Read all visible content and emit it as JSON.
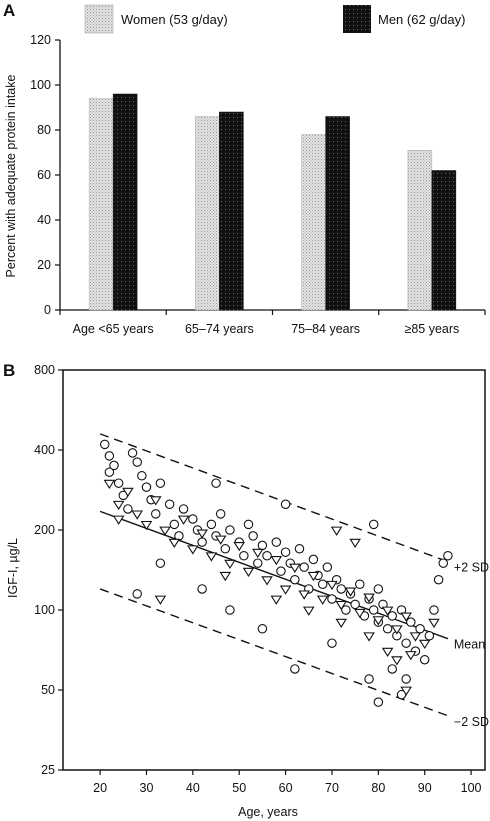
{
  "chart_data": [
    {
      "panel": "A",
      "type": "bar",
      "ylabel": "Percent with adequate protein intake",
      "xlabel": "",
      "ylim": [
        0,
        120
      ],
      "yticks": [
        0,
        20,
        40,
        60,
        80,
        100,
        120
      ],
      "grid": false,
      "legend_position": "top",
      "categories": [
        "Age <65 years",
        "65–74 years",
        "75–84 years",
        "≥85 years"
      ],
      "series": [
        {
          "name": "Women (53 g/day)",
          "color": "#d4d4d4",
          "values": [
            94,
            86,
            78,
            71
          ]
        },
        {
          "name": "Men (62 g/day)",
          "color": "#111111",
          "values": [
            96,
            88,
            86,
            62
          ]
        }
      ]
    },
    {
      "panel": "B",
      "type": "scatter",
      "xlabel": "Age, years",
      "ylabel": "IGF-I, µg/L",
      "xlim": [
        12,
        103
      ],
      "ylim": [
        25,
        800
      ],
      "yscale": "log",
      "xticks": [
        20,
        30,
        40,
        50,
        60,
        70,
        80,
        90,
        100
      ],
      "yticks": [
        25,
        50,
        100,
        200,
        400,
        800
      ],
      "grid": false,
      "reference_lines": [
        {
          "name": "+2 SD",
          "style": "dashed",
          "points": [
            [
              20,
              460
            ],
            [
              95,
              152
            ]
          ]
        },
        {
          "name": "Mean",
          "style": "solid",
          "points": [
            [
              20,
              235
            ],
            [
              95,
              78
            ]
          ]
        },
        {
          "name": "−2 SD",
          "style": "dashed",
          "points": [
            [
              20,
              120
            ],
            [
              95,
              40
            ]
          ]
        }
      ],
      "series": [
        {
          "name": "",
          "marker": "circle",
          "points": [
            [
              21,
              420
            ],
            [
              22,
              380
            ],
            [
              22,
              330
            ],
            [
              23,
              350
            ],
            [
              24,
              300
            ],
            [
              25,
              270
            ],
            [
              26,
              240
            ],
            [
              27,
              390
            ],
            [
              28,
              360
            ],
            [
              29,
              320
            ],
            [
              30,
              290
            ],
            [
              31,
              260
            ],
            [
              32,
              230
            ],
            [
              33,
              300
            ],
            [
              35,
              250
            ],
            [
              36,
              210
            ],
            [
              37,
              190
            ],
            [
              38,
              240
            ],
            [
              40,
              220
            ],
            [
              41,
              200
            ],
            [
              42,
              180
            ],
            [
              44,
              210
            ],
            [
              45,
              190
            ],
            [
              46,
              230
            ],
            [
              47,
              170
            ],
            [
              48,
              200
            ],
            [
              50,
              180
            ],
            [
              51,
              160
            ],
            [
              52,
              210
            ],
            [
              53,
              190
            ],
            [
              54,
              150
            ],
            [
              55,
              175
            ],
            [
              56,
              160
            ],
            [
              58,
              180
            ],
            [
              59,
              140
            ],
            [
              60,
              165
            ],
            [
              61,
              150
            ],
            [
              62,
              130
            ],
            [
              63,
              170
            ],
            [
              64,
              145
            ],
            [
              65,
              120
            ],
            [
              66,
              155
            ],
            [
              67,
              135
            ],
            [
              68,
              125
            ],
            [
              69,
              145
            ],
            [
              70,
              110
            ],
            [
              71,
              130
            ],
            [
              72,
              120
            ],
            [
              73,
              100
            ],
            [
              74,
              115
            ],
            [
              75,
              105
            ],
            [
              76,
              125
            ],
            [
              77,
              95
            ],
            [
              78,
              110
            ],
            [
              79,
              100
            ],
            [
              80,
              90
            ],
            [
              80,
              120
            ],
            [
              81,
              105
            ],
            [
              82,
              85
            ],
            [
              83,
              95
            ],
            [
              84,
              80
            ],
            [
              85,
              100
            ],
            [
              86,
              75
            ],
            [
              87,
              90
            ],
            [
              88,
              70
            ],
            [
              89,
              85
            ],
            [
              90,
              65
            ],
            [
              91,
              80
            ],
            [
              92,
              100
            ],
            [
              93,
              130
            ],
            [
              94,
              150
            ],
            [
              95,
              160
            ],
            [
              28,
              115
            ],
            [
              33,
              150
            ],
            [
              42,
              120
            ],
            [
              48,
              100
            ],
            [
              55,
              85
            ],
            [
              62,
              60
            ],
            [
              70,
              75
            ],
            [
              78,
              55
            ],
            [
              83,
              60
            ],
            [
              86,
              55
            ],
            [
              80,
              45
            ],
            [
              85,
              48
            ],
            [
              79,
              210
            ],
            [
              60,
              250
            ],
            [
              45,
              300
            ]
          ]
        },
        {
          "name": "",
          "marker": "triangle",
          "points": [
            [
              22,
              300
            ],
            [
              24,
              250
            ],
            [
              26,
              280
            ],
            [
              28,
              230
            ],
            [
              30,
              210
            ],
            [
              32,
              260
            ],
            [
              34,
              200
            ],
            [
              36,
              180
            ],
            [
              38,
              220
            ],
            [
              40,
              170
            ],
            [
              42,
              195
            ],
            [
              44,
              160
            ],
            [
              46,
              185
            ],
            [
              48,
              150
            ],
            [
              50,
              175
            ],
            [
              52,
              140
            ],
            [
              54,
              165
            ],
            [
              56,
              130
            ],
            [
              58,
              155
            ],
            [
              60,
              120
            ],
            [
              62,
              145
            ],
            [
              64,
              115
            ],
            [
              66,
              135
            ],
            [
              68,
              110
            ],
            [
              70,
              125
            ],
            [
              72,
              105
            ],
            [
              74,
              118
            ],
            [
              76,
              98
            ],
            [
              78,
              112
            ],
            [
              80,
              92
            ],
            [
              82,
              100
            ],
            [
              84,
              85
            ],
            [
              86,
              95
            ],
            [
              88,
              80
            ],
            [
              90,
              75
            ],
            [
              24,
              220
            ],
            [
              33,
              110
            ],
            [
              47,
              135
            ],
            [
              58,
              110
            ],
            [
              65,
              100
            ],
            [
              72,
              90
            ],
            [
              78,
              80
            ],
            [
              82,
              70
            ],
            [
              84,
              65
            ],
            [
              87,
              68
            ],
            [
              86,
              50
            ],
            [
              71,
              200
            ],
            [
              75,
              180
            ],
            [
              92,
              90
            ]
          ]
        }
      ]
    }
  ],
  "labels": {
    "panel_a": "A",
    "panel_b": "B"
  }
}
